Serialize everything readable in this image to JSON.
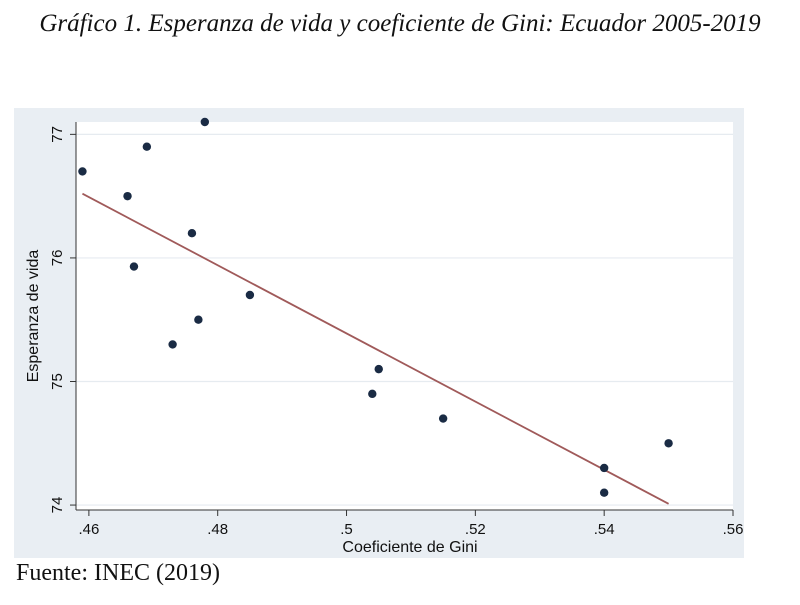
{
  "header": {
    "title": "Gráfico 1. Esperanza de vida y coeficiente de Gini: Ecuador 2005-2019"
  },
  "footer": {
    "source": "Fuente: INEC (2019)"
  },
  "colors": {
    "background": "#e9eef3",
    "plot_bg": "#ffffff",
    "point": "#1a2b44",
    "fit_line": "#a05a5a"
  },
  "chart_data": {
    "type": "scatter",
    "title": "",
    "xlabel": "Coeficiente de Gini",
    "ylabel": "Esperanza de vida",
    "xlim": [
      0.458,
      0.56
    ],
    "ylim": [
      73.96,
      77.1
    ],
    "x_ticks": [
      0.46,
      0.48,
      0.5,
      0.52,
      0.54,
      0.56
    ],
    "x_tick_labels": [
      ".46",
      ".48",
      ".5",
      ".52",
      ".54",
      ".56"
    ],
    "y_ticks": [
      74,
      75,
      76,
      77
    ],
    "y_tick_labels": [
      "74",
      "75",
      "76",
      "77"
    ],
    "grid": true,
    "points": [
      {
        "x": 0.459,
        "y": 76.7
      },
      {
        "x": 0.466,
        "y": 76.5
      },
      {
        "x": 0.467,
        "y": 75.93
      },
      {
        "x": 0.469,
        "y": 76.9
      },
      {
        "x": 0.473,
        "y": 75.3
      },
      {
        "x": 0.476,
        "y": 76.2
      },
      {
        "x": 0.477,
        "y": 75.5
      },
      {
        "x": 0.478,
        "y": 77.1
      },
      {
        "x": 0.485,
        "y": 75.7
      },
      {
        "x": 0.504,
        "y": 74.9
      },
      {
        "x": 0.505,
        "y": 75.1
      },
      {
        "x": 0.515,
        "y": 74.7
      },
      {
        "x": 0.54,
        "y": 74.3
      },
      {
        "x": 0.54,
        "y": 74.1
      },
      {
        "x": 0.55,
        "y": 74.5
      }
    ],
    "fit_line": [
      {
        "x": 0.459,
        "y": 76.52
      },
      {
        "x": 0.55,
        "y": 74.01
      }
    ]
  }
}
